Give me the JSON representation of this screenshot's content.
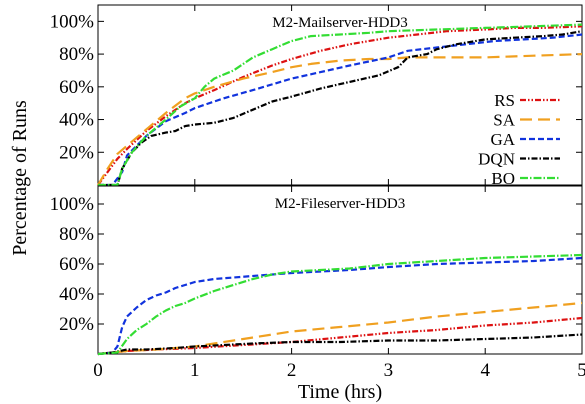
{
  "chart_data": {
    "type": "line",
    "ylabel": "Percentage of Runs",
    "xlabel": "Time (hrs)",
    "xlim": [
      0,
      5
    ],
    "x_ticks": [
      "0",
      "1",
      "2",
      "3",
      "4",
      "5"
    ],
    "y_ticks": [
      "20%",
      "40%",
      "60%",
      "80%",
      "100%"
    ],
    "legend": {
      "placement": "right",
      "panel": "top"
    },
    "panels": [
      {
        "title": "M2-Mailserver-HDD3",
        "ylim": [
          0,
          110
        ],
        "series": [
          {
            "name": "RS",
            "color": "#dd1111",
            "dash": "6,2,1.5,2,1.5,2",
            "points": [
              [
                0,
                0
              ],
              [
                0.1,
                8
              ],
              [
                0.2,
                16
              ],
              [
                0.3,
                22
              ],
              [
                0.5,
                33
              ],
              [
                0.7,
                42
              ],
              [
                0.9,
                50
              ],
              [
                1.0,
                53
              ],
              [
                1.2,
                58
              ],
              [
                1.5,
                66
              ],
              [
                1.8,
                73
              ],
              [
                2.0,
                77
              ],
              [
                2.3,
                82
              ],
              [
                2.6,
                86
              ],
              [
                3.0,
                90
              ],
              [
                3.3,
                92
              ],
              [
                3.6,
                94
              ],
              [
                4.0,
                95
              ],
              [
                4.3,
                96
              ],
              [
                4.6,
                96
              ],
              [
                5.0,
                97
              ]
            ]
          },
          {
            "name": "SA",
            "color": "#f0a020",
            "dash": "12,6",
            "points": [
              [
                0,
                0
              ],
              [
                0.1,
                10
              ],
              [
                0.2,
                19
              ],
              [
                0.3,
                24
              ],
              [
                0.5,
                34
              ],
              [
                0.7,
                44
              ],
              [
                0.9,
                53
              ],
              [
                1.0,
                56
              ],
              [
                1.2,
                60
              ],
              [
                1.5,
                65
              ],
              [
                1.8,
                69
              ],
              [
                2.0,
                72
              ],
              [
                2.2,
                74
              ],
              [
                2.5,
                76
              ],
              [
                2.8,
                77
              ],
              [
                3.0,
                77
              ],
              [
                3.2,
                78
              ],
              [
                3.6,
                78
              ],
              [
                4.0,
                78
              ],
              [
                4.5,
                79
              ],
              [
                5.0,
                80
              ]
            ]
          },
          {
            "name": "GA",
            "color": "#1133dd",
            "dash": "6,3",
            "points": [
              [
                0,
                0
              ],
              [
                0.15,
                0
              ],
              [
                0.25,
                8
              ],
              [
                0.3,
                18
              ],
              [
                0.5,
                30
              ],
              [
                0.7,
                39
              ],
              [
                0.9,
                44
              ],
              [
                1.0,
                47
              ],
              [
                1.3,
                53
              ],
              [
                1.6,
                58
              ],
              [
                2.0,
                65
              ],
              [
                2.3,
                69
              ],
              [
                2.6,
                73
              ],
              [
                3.0,
                78
              ],
              [
                3.2,
                82
              ],
              [
                3.5,
                84
              ],
              [
                3.8,
                86
              ],
              [
                4.1,
                88
              ],
              [
                4.4,
                89
              ],
              [
                4.7,
                90
              ],
              [
                5.0,
                92
              ]
            ]
          },
          {
            "name": "DQN",
            "color": "#000000",
            "dash": "6,2,1.5,2",
            "points": [
              [
                0,
                0
              ],
              [
                0.2,
                0
              ],
              [
                0.25,
                10
              ],
              [
                0.35,
                20
              ],
              [
                0.45,
                26
              ],
              [
                0.55,
                30
              ],
              [
                0.7,
                32
              ],
              [
                0.8,
                33
              ],
              [
                0.9,
                36
              ],
              [
                1.0,
                37
              ],
              [
                1.2,
                38
              ],
              [
                1.4,
                41
              ],
              [
                1.6,
                46
              ],
              [
                1.8,
                51
              ],
              [
                2.0,
                54
              ],
              [
                2.3,
                59
              ],
              [
                2.6,
                63
              ],
              [
                2.9,
                67
              ],
              [
                3.1,
                72
              ],
              [
                3.2,
                78
              ],
              [
                3.4,
                80
              ],
              [
                3.5,
                83
              ],
              [
                3.7,
                86
              ],
              [
                4.0,
                89
              ],
              [
                4.3,
                90
              ],
              [
                4.6,
                91
              ],
              [
                4.8,
                92
              ],
              [
                5.0,
                94
              ]
            ]
          },
          {
            "name": "BO",
            "color": "#33dd33",
            "dash": "8,2,1.5,2",
            "points": [
              [
                0,
                0
              ],
              [
                0.2,
                0
              ],
              [
                0.25,
                10
              ],
              [
                0.35,
                20
              ],
              [
                0.5,
                30
              ],
              [
                0.7,
                40
              ],
              [
                0.85,
                48
              ],
              [
                1.0,
                53
              ],
              [
                1.1,
                60
              ],
              [
                1.2,
                65
              ],
              [
                1.4,
                70
              ],
              [
                1.6,
                78
              ],
              [
                1.8,
                83
              ],
              [
                2.0,
                88
              ],
              [
                2.2,
                91
              ],
              [
                2.5,
                92
              ],
              [
                2.8,
                93
              ],
              [
                3.0,
                94
              ],
              [
                3.5,
                95
              ],
              [
                4.0,
                96
              ],
              [
                4.5,
                97
              ],
              [
                5.0,
                98
              ]
            ]
          }
        ]
      },
      {
        "title": "M2-Fileserver-HDD3",
        "ylim": [
          0,
          112
        ],
        "series": [
          {
            "name": "RS",
            "color": "#dd1111",
            "dash": "6,2,1.5,2,1.5,2",
            "points": [
              [
                0,
                0
              ],
              [
                0.3,
                2
              ],
              [
                0.6,
                3
              ],
              [
                1.0,
                4
              ],
              [
                1.5,
                6
              ],
              [
                2.0,
                8
              ],
              [
                2.5,
                11
              ],
              [
                3.0,
                14
              ],
              [
                3.5,
                16
              ],
              [
                4.0,
                19
              ],
              [
                4.5,
                21
              ],
              [
                5.0,
                24
              ]
            ]
          },
          {
            "name": "SA",
            "color": "#f0a020",
            "dash": "12,6",
            "points": [
              [
                0,
                0
              ],
              [
                0.3,
                2
              ],
              [
                0.6,
                3
              ],
              [
                1.0,
                5
              ],
              [
                1.5,
                10
              ],
              [
                2.0,
                15
              ],
              [
                2.5,
                18
              ],
              [
                3.0,
                21
              ],
              [
                3.5,
                25
              ],
              [
                4.0,
                28
              ],
              [
                4.5,
                31
              ],
              [
                5.0,
                34
              ]
            ]
          },
          {
            "name": "GA",
            "color": "#1133dd",
            "dash": "6,3",
            "points": [
              [
                0,
                0
              ],
              [
                0.15,
                1
              ],
              [
                0.2,
                5
              ],
              [
                0.25,
                18
              ],
              [
                0.3,
                25
              ],
              [
                0.4,
                31
              ],
              [
                0.5,
                36
              ],
              [
                0.6,
                39
              ],
              [
                0.7,
                41
              ],
              [
                0.8,
                44
              ],
              [
                0.9,
                46
              ],
              [
                1.0,
                48
              ],
              [
                1.2,
                50
              ],
              [
                1.4,
                51
              ],
              [
                1.6,
                52
              ],
              [
                1.8,
                53
              ],
              [
                2.0,
                54
              ],
              [
                2.3,
                55
              ],
              [
                2.6,
                56
              ],
              [
                3.0,
                58
              ],
              [
                3.5,
                60
              ],
              [
                4.0,
                61
              ],
              [
                4.5,
                62
              ],
              [
                5.0,
                64
              ]
            ]
          },
          {
            "name": "DQN",
            "color": "#000000",
            "dash": "6,2,1.5,2",
            "points": [
              [
                0,
                0
              ],
              [
                0.15,
                1
              ],
              [
                0.3,
                3
              ],
              [
                0.5,
                3
              ],
              [
                0.8,
                4
              ],
              [
                1.0,
                5
              ],
              [
                1.3,
                6
              ],
              [
                1.6,
                7
              ],
              [
                2.0,
                8
              ],
              [
                2.5,
                8
              ],
              [
                3.0,
                9
              ],
              [
                3.5,
                9
              ],
              [
                4.0,
                10
              ],
              [
                4.5,
                11
              ],
              [
                5.0,
                13
              ]
            ]
          },
          {
            "name": "BO",
            "color": "#33dd33",
            "dash": "8,2,1.5,2",
            "points": [
              [
                0,
                0
              ],
              [
                0.2,
                1
              ],
              [
                0.3,
                10
              ],
              [
                0.4,
                16
              ],
              [
                0.5,
                20
              ],
              [
                0.6,
                25
              ],
              [
                0.7,
                29
              ],
              [
                0.8,
                32
              ],
              [
                0.9,
                34
              ],
              [
                1.0,
                37
              ],
              [
                1.2,
                42
              ],
              [
                1.4,
                46
              ],
              [
                1.6,
                50
              ],
              [
                1.8,
                53
              ],
              [
                2.0,
                55
              ],
              [
                2.3,
                56
              ],
              [
                2.6,
                57
              ],
              [
                3.0,
                60
              ],
              [
                3.5,
                62
              ],
              [
                4.0,
                64
              ],
              [
                4.5,
                65
              ],
              [
                5.0,
                66
              ]
            ]
          }
        ]
      }
    ]
  }
}
